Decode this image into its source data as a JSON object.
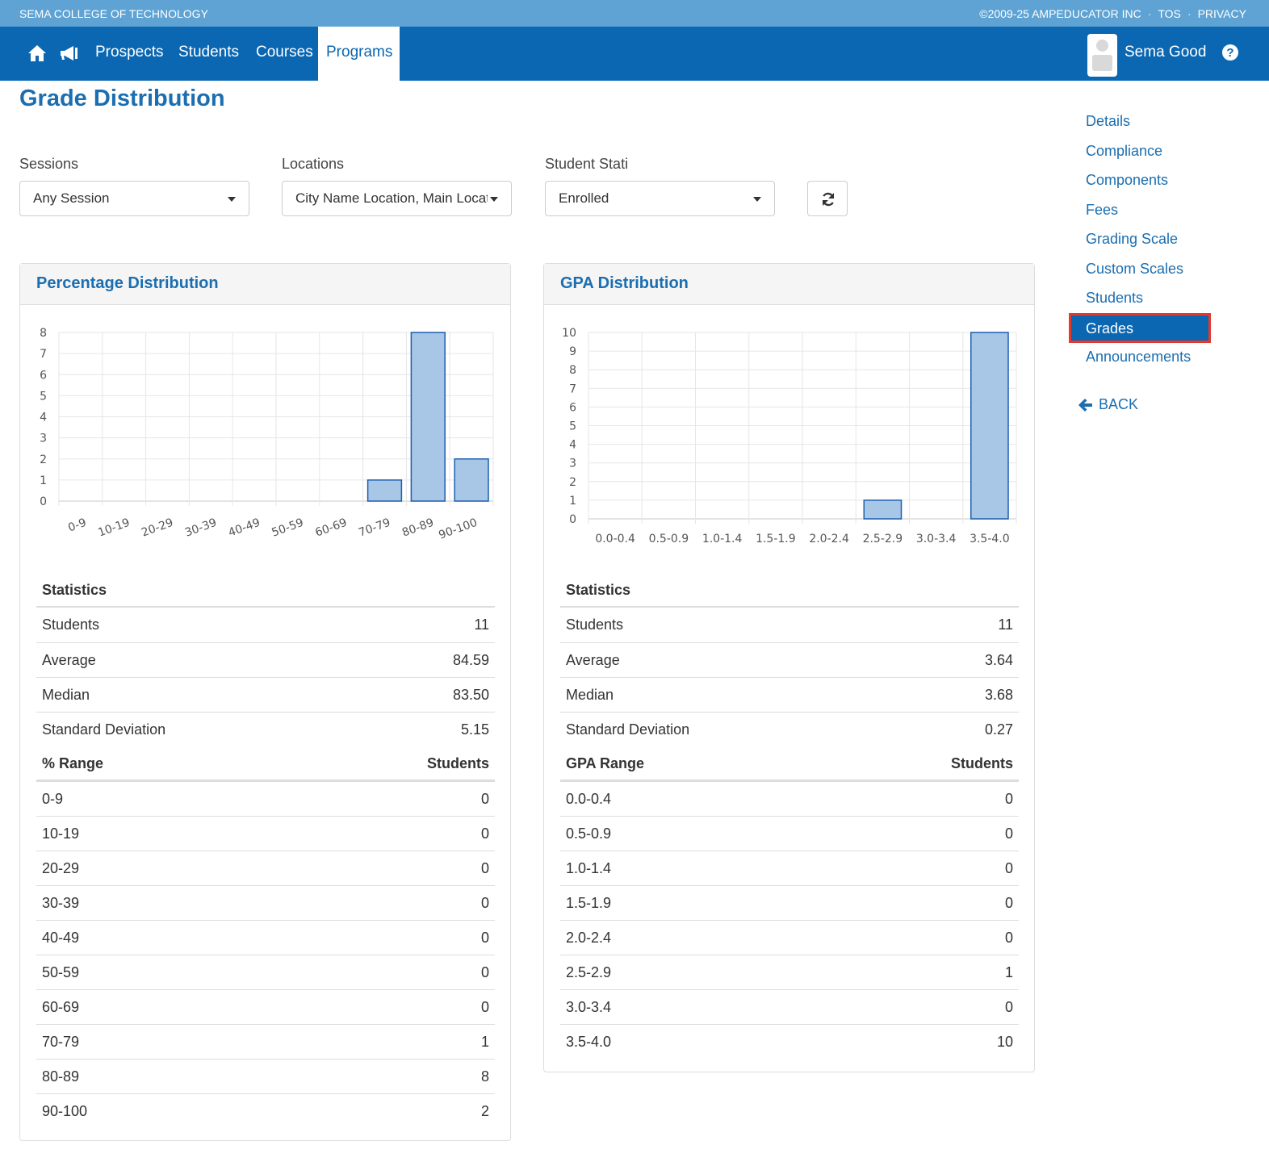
{
  "topbar": {
    "school": "SEMA COLLEGE OF TECHNOLOGY",
    "copyright": "©2009-25 AMPEDUCATOR INC",
    "tos": "TOS",
    "privacy": "PRIVACY",
    "separator": "·"
  },
  "nav": {
    "links": [
      "Prospects",
      "Students",
      "Courses"
    ],
    "active": "Programs",
    "user": "Sema Good",
    "icons": [
      "home-icon",
      "megaphone-icon",
      "help-icon"
    ]
  },
  "page": {
    "title": "Grade Distribution"
  },
  "filters": {
    "sessions": {
      "label": "Sessions",
      "value": "Any Session"
    },
    "locations": {
      "label": "Locations",
      "value": "City Name Location, Main Location"
    },
    "status": {
      "label": "Student Stati",
      "value": "Enrolled"
    }
  },
  "percentage": {
    "title": "Percentage Distribution",
    "stats_header": "Statistics",
    "stats": [
      {
        "k": "Students",
        "v": "11"
      },
      {
        "k": "Average",
        "v": "84.59"
      },
      {
        "k": "Median",
        "v": "83.50"
      },
      {
        "k": "Standard Deviation",
        "v": "5.15"
      }
    ],
    "range_header": "% Range",
    "count_header": "Students",
    "ranges": [
      {
        "k": "0-9",
        "v": "0"
      },
      {
        "k": "10-19",
        "v": "0"
      },
      {
        "k": "20-29",
        "v": "0"
      },
      {
        "k": "30-39",
        "v": "0"
      },
      {
        "k": "40-49",
        "v": "0"
      },
      {
        "k": "50-59",
        "v": "0"
      },
      {
        "k": "60-69",
        "v": "0"
      },
      {
        "k": "70-79",
        "v": "1"
      },
      {
        "k": "80-89",
        "v": "8"
      },
      {
        "k": "90-100",
        "v": "2"
      }
    ]
  },
  "gpa": {
    "title": "GPA Distribution",
    "stats_header": "Statistics",
    "stats": [
      {
        "k": "Students",
        "v": "11"
      },
      {
        "k": "Average",
        "v": "3.64"
      },
      {
        "k": "Median",
        "v": "3.68"
      },
      {
        "k": "Standard Deviation",
        "v": "0.27"
      }
    ],
    "range_header": "GPA Range",
    "count_header": "Students",
    "ranges": [
      {
        "k": "0.0-0.4",
        "v": "0"
      },
      {
        "k": "0.5-0.9",
        "v": "0"
      },
      {
        "k": "1.0-1.4",
        "v": "0"
      },
      {
        "k": "1.5-1.9",
        "v": "0"
      },
      {
        "k": "2.0-2.4",
        "v": "0"
      },
      {
        "k": "2.5-2.9",
        "v": "1"
      },
      {
        "k": "3.0-3.4",
        "v": "0"
      },
      {
        "k": "3.5-4.0",
        "v": "10"
      }
    ]
  },
  "chart_data": [
    {
      "type": "bar",
      "title": "Percentage Distribution",
      "categories": [
        "0-9",
        "10-19",
        "20-29",
        "30-39",
        "40-49",
        "50-59",
        "60-69",
        "70-79",
        "80-89",
        "90-100"
      ],
      "values": [
        0,
        0,
        0,
        0,
        0,
        0,
        0,
        1,
        8,
        2
      ],
      "ylim": [
        0,
        8
      ],
      "yticks": [
        0,
        1,
        2,
        3,
        4,
        5,
        6,
        7,
        8
      ],
      "grid": true,
      "bar_color": "#a8c6e6",
      "bar_edge": "#1c5fae"
    },
    {
      "type": "bar",
      "title": "GPA Distribution",
      "categories": [
        "0.0-0.4",
        "0.5-0.9",
        "1.0-1.4",
        "1.5-1.9",
        "2.0-2.4",
        "2.5-2.9",
        "3.0-3.4",
        "3.5-4.0"
      ],
      "values": [
        0,
        0,
        0,
        0,
        0,
        1,
        0,
        10
      ],
      "ylim": [
        0,
        10
      ],
      "yticks": [
        0,
        1,
        2,
        3,
        4,
        5,
        6,
        7,
        8,
        9,
        10
      ],
      "grid": true,
      "bar_color": "#a8c6e6",
      "bar_edge": "#1c5fae"
    }
  ],
  "sidenav": {
    "items": [
      "Details",
      "Compliance",
      "Components",
      "Fees",
      "Grading Scale",
      "Custom Scales",
      "Students"
    ],
    "active": "Grades",
    "after": [
      "Announcements"
    ],
    "back": "BACK"
  },
  "colors": {
    "brand": "#0b67b2",
    "topstrip": "#5ea3d3",
    "link": "#1b6eb0",
    "highlight": "#e8372b"
  }
}
